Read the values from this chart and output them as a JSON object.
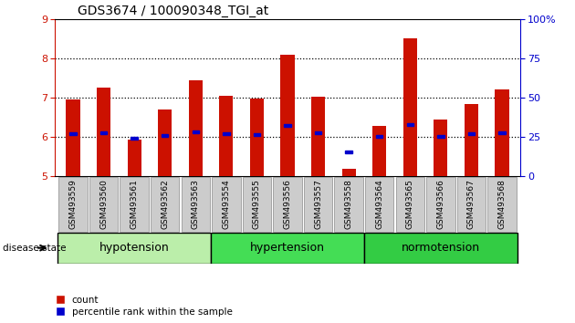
{
  "title": "GDS3674 / 100090348_TGI_at",
  "samples": [
    "GSM493559",
    "GSM493560",
    "GSM493561",
    "GSM493562",
    "GSM493563",
    "GSM493554",
    "GSM493555",
    "GSM493556",
    "GSM493557",
    "GSM493558",
    "GSM493564",
    "GSM493565",
    "GSM493566",
    "GSM493567",
    "GSM493568"
  ],
  "count_values": [
    6.95,
    7.25,
    5.92,
    6.7,
    7.45,
    7.05,
    6.98,
    8.1,
    7.02,
    5.18,
    6.28,
    8.52,
    6.45,
    6.85,
    7.22
  ],
  "percentile_values": [
    6.08,
    6.1,
    5.96,
    6.03,
    6.12,
    6.08,
    6.05,
    6.28,
    6.1,
    5.62,
    6.02,
    6.32,
    6.02,
    6.08,
    6.1
  ],
  "baseline": 5.0,
  "ylim": [
    5.0,
    9.0
  ],
  "yticks": [
    5,
    6,
    7,
    8,
    9
  ],
  "y2lim": [
    0,
    100
  ],
  "y2ticks": [
    0,
    25,
    50,
    75,
    100
  ],
  "y2ticklabels": [
    "0",
    "25",
    "50",
    "75",
    "100%"
  ],
  "groups": [
    {
      "name": "hypotension",
      "indices": [
        0,
        1,
        2,
        3,
        4
      ],
      "color": "#bbeeaa"
    },
    {
      "name": "hypertension",
      "indices": [
        5,
        6,
        7,
        8,
        9
      ],
      "color": "#44dd55"
    },
    {
      "name": "normotension",
      "indices": [
        10,
        11,
        12,
        13,
        14
      ],
      "color": "#33cc44"
    }
  ],
  "bar_color": "#CC1100",
  "percentile_color": "#0000CC",
  "bar_width": 0.45,
  "background_color": "#ffffff",
  "label_bg_color": "#cccccc",
  "disease_state_label": "disease state",
  "legend_count": "count",
  "legend_percentile": "percentile rank within the sample"
}
